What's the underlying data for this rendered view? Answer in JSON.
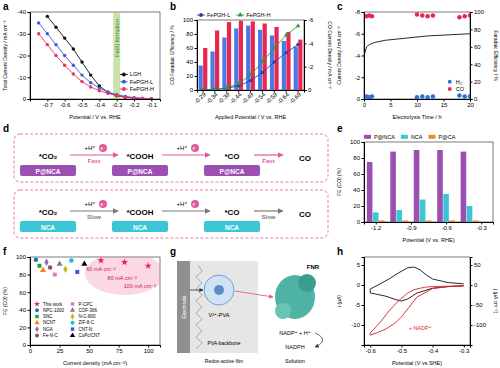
{
  "chart_data": [
    {
      "panel_label": "a",
      "type": "line",
      "x_label": "Potential / V vs. RHE",
      "y_label": "Total Current Density / mA cm⁻²",
      "xlim": [
        -0.8,
        -0.05
      ],
      "xticks": [
        -0.7,
        -0.6,
        -0.5,
        -0.4,
        -0.3,
        -0.2,
        -0.1
      ],
      "ylim": [
        0,
        -40
      ],
      "yticks": [
        0,
        -10,
        -20,
        -30,
        -40
      ],
      "x": [
        -0.75,
        -0.7,
        -0.65,
        -0.6,
        -0.55,
        -0.5,
        -0.45,
        -0.4,
        -0.35,
        -0.3,
        -0.25,
        -0.2,
        -0.15,
        -0.1
      ],
      "series": [
        {
          "name": "LGH",
          "color": "#111111",
          "marker": "circle",
          "values": [
            null,
            -38,
            -33,
            -28,
            -23,
            -17,
            -11,
            -6,
            -3,
            -1.5,
            -0.8,
            -0.4,
            -0.2,
            -0.1
          ]
        },
        {
          "name": "FePGH-L",
          "color": "#3b5bdb",
          "marker": "circle",
          "values": [
            -35,
            -30,
            -25,
            -20,
            -15.5,
            -11,
            -7.5,
            -5,
            -3.2,
            -2,
            -1.2,
            -0.6,
            -0.3,
            -0.1
          ]
        },
        {
          "name": "FePGH-H",
          "color": "#e8336d",
          "marker": "circle",
          "values": [
            -30,
            -25,
            -20,
            -15.5,
            -11.5,
            -8,
            -5.5,
            -3.8,
            -2.6,
            -1.6,
            -0.9,
            -0.5,
            -0.2,
            -0.1
          ]
        }
      ],
      "bands": [
        {
          "from": -0.32,
          "to": -0.28,
          "label": "Fe(II) formation",
          "color": "#9ccc65"
        }
      ],
      "legend": "bottom-right"
    },
    {
      "panel_label": "b",
      "type": "bar",
      "categories": [
        "-0.29",
        "-0.34",
        "-0.39",
        "-0.44",
        "-0.49",
        "-0.54",
        "-0.59",
        "-0.64",
        "-0.69"
      ],
      "x_label": "Applied Potential / V vs. RHE",
      "y_label": "CO Faradaic Efficiency / %",
      "y2_label": "CO Current Density / mA cm⁻²",
      "ylim": [
        0,
        100
      ],
      "yticks": [
        0,
        20,
        40,
        60,
        80,
        100
      ],
      "y2lim": [
        0,
        -6
      ],
      "y2ticks": [
        0,
        -2,
        -4,
        -6
      ],
      "series": [
        {
          "name": "FePGH-L",
          "type": "line",
          "axis": "y2",
          "color": "#2b3fa8",
          "marker": "circle",
          "values": [
            0,
            -0.05,
            -0.15,
            -0.35,
            -0.8,
            -1.5,
            -2.4,
            -3.2,
            -3.9
          ]
        },
        {
          "name": "FePGH-H",
          "type": "line",
          "axis": "y2",
          "color": "#2e9e3e",
          "marker": "triangle",
          "values": [
            0,
            -0.05,
            -0.2,
            -0.55,
            -1.3,
            -2.4,
            -3.6,
            -4.7,
            -5.5
          ]
        },
        {
          "name": "FePGH-L",
          "type": "bar",
          "color": "#4d79e6",
          "values": [
            35,
            55,
            75,
            88,
            92,
            86,
            78,
            70,
            62
          ]
        },
        {
          "name": "FePGH-H",
          "type": "bar",
          "color": "#e8264f",
          "values": [
            60,
            85,
            97,
            99,
            98,
            95,
            90,
            83,
            72
          ]
        }
      ],
      "legend": "top"
    },
    {
      "panel_label": "c",
      "type": "line",
      "x_label": "Electrolysis Time / h",
      "y_label": "Current Density / mA cm⁻²",
      "y2_label": "Faradaic Efficiency / %",
      "xlim": [
        0,
        20
      ],
      "xticks": [
        0,
        5,
        10,
        15,
        20
      ],
      "ylim": [
        0,
        -8
      ],
      "yticks": [
        0,
        -2,
        -4,
        -6,
        -8
      ],
      "y2lim": [
        0,
        100
      ],
      "y2ticks": [
        0,
        20,
        40,
        60,
        80,
        100
      ],
      "series": [
        {
          "name": "H₂",
          "type": "scatter",
          "axis": "y2",
          "color": "#2f6fd6",
          "marker": "circle",
          "x": [
            0.5,
            1,
            1.5,
            10,
            11,
            12,
            13,
            18,
            19,
            20
          ],
          "values": [
            3,
            2,
            3,
            2,
            3,
            2,
            3,
            4,
            3,
            3
          ]
        },
        {
          "name": "CO",
          "type": "scatter",
          "axis": "y2",
          "color": "#e8264f",
          "marker": "circle",
          "x": [
            0.5,
            1,
            1.5,
            10,
            11,
            12,
            13,
            18,
            19,
            20
          ],
          "values": [
            95,
            96,
            95,
            97,
            96,
            95,
            96,
            94,
            95,
            96
          ]
        },
        {
          "type": "line",
          "color": "#111111",
          "x": [
            0,
            0.5,
            1,
            2,
            4,
            6,
            8,
            10,
            12,
            14,
            16,
            18,
            20
          ],
          "values": [
            -4.0,
            -4.8,
            -5.0,
            -5.2,
            -5.4,
            -5.5,
            -5.6,
            -5.7,
            -5.8,
            -5.85,
            -5.9,
            -5.95,
            -6.0
          ]
        }
      ],
      "legend": "bottom-right"
    },
    {
      "panel_label": "e",
      "type": "bar",
      "x_label": "Potential (V vs. RHE)",
      "y_label": "FE (CO) (%)",
      "xlim": [
        -1.3,
        -0.2
      ],
      "xticks": [
        -1.2,
        -0.9,
        -0.6,
        -0.3
      ],
      "ylim": [
        0,
        100
      ],
      "yticks": [
        0,
        20,
        40,
        60,
        80,
        100
      ],
      "x": [
        -1.2,
        -1.0,
        -0.8,
        -0.6,
        -0.4
      ],
      "series": [
        {
          "name": "P@NCA",
          "color": "#9b4fb0",
          "values": [
            75,
            88,
            90,
            90,
            88
          ]
        },
        {
          "name": "NCA",
          "color": "#3bc6d6",
          "values": [
            12,
            15,
            28,
            35,
            20
          ]
        },
        {
          "name": "P@CA",
          "color": "#f28c28",
          "values": [
            2,
            2,
            2,
            2,
            2
          ]
        }
      ],
      "legend": "top"
    },
    {
      "panel_label": "f",
      "type": "scatter",
      "x_label": "Current density (mA cm⁻²)",
      "y_label": "FE (CO) (%)",
      "xlim": [
        0,
        110
      ],
      "xticks": [
        0,
        25,
        50,
        75,
        100
      ],
      "ylim": [
        0,
        100
      ],
      "yticks": [
        0,
        20,
        40,
        60,
        80,
        100
      ],
      "series": [
        {
          "name": "This work",
          "color": "#e8264f",
          "marker": "star",
          "x": [
            60,
            80,
            100
          ],
          "values": [
            96,
            94,
            90
          ]
        },
        {
          "name": "NPC-1000",
          "color": "#1f77b4",
          "marker": "circle",
          "x": [
            5
          ],
          "values": [
            97
          ]
        },
        {
          "name": "SNC",
          "color": "#2ca02c",
          "marker": "square",
          "x": [
            8
          ],
          "values": [
            90
          ]
        },
        {
          "name": "NCNT",
          "color": "#ff7f0e",
          "marker": "triangle",
          "x": [
            11
          ],
          "values": [
            85
          ]
        },
        {
          "name": "NGA",
          "color": "#9467bd",
          "marker": "diamond",
          "x": [
            14
          ],
          "values": [
            94
          ]
        },
        {
          "name": "Fe-N-C",
          "color": "#8c564b",
          "marker": "circle",
          "x": [
            17
          ],
          "values": [
            88
          ]
        },
        {
          "name": "P-CPC",
          "color": "#e377c2",
          "marker": "square",
          "x": [
            21
          ],
          "values": [
            80
          ]
        },
        {
          "name": "COF-366",
          "color": "#7f7f7f",
          "marker": "triangle",
          "x": [
            25
          ],
          "values": [
            92
          ]
        },
        {
          "name": "N-C-800",
          "color": "#bcbd22",
          "marker": "diamond",
          "x": [
            30
          ],
          "values": [
            86
          ]
        },
        {
          "name": "ZIF-8-C",
          "color": "#17becf",
          "marker": "circle",
          "x": [
            35
          ],
          "values": [
            96
          ]
        },
        {
          "name": "CNT-N",
          "color": "#3b5bdb",
          "marker": "square",
          "x": [
            40
          ],
          "values": [
            83
          ]
        },
        {
          "name": "CoPc/CNT",
          "color": "#000000",
          "marker": "triangle",
          "x": [
            46
          ],
          "values": [
            92
          ]
        }
      ],
      "annotations": [
        {
          "text": "60 mA cm⁻²",
          "x": 60,
          "y": 86,
          "color": "#c2185b"
        },
        {
          "text": "80 mA cm⁻²",
          "x": 78,
          "y": 76,
          "color": "#c2185b"
        },
        {
          "text": "100 mA cm⁻²",
          "x": 93,
          "y": 66,
          "color": "#c2185b"
        }
      ],
      "legend": "bottom-left"
    },
    {
      "panel_label": "h",
      "type": "line",
      "x_label": "Potential (V vs SHE)",
      "y_label": "i (µA)",
      "y2_label": "j (µA cm⁻²)",
      "xlim": [
        -0.62,
        -0.28
      ],
      "xticks": [
        -0.6,
        -0.5,
        -0.4,
        -0.3
      ],
      "ylim": [
        -15,
        7
      ],
      "yticks": [
        -10,
        -5,
        0,
        5
      ],
      "y2lim": [
        -150,
        70
      ],
      "y2ticks": [
        -100,
        -50,
        0,
        50
      ],
      "series": [
        {
          "color": "#111111",
          "x": [
            -0.3,
            -0.35,
            -0.4,
            -0.45,
            -0.48,
            -0.5,
            -0.52,
            -0.55,
            -0.58,
            -0.6,
            -0.6,
            -0.57,
            -0.54,
            -0.51,
            -0.48,
            -0.46,
            -0.44,
            -0.42,
            -0.4,
            -0.35,
            -0.3
          ],
          "values": [
            -0.2,
            -0.4,
            -0.8,
            -2.0,
            -3.5,
            -4.0,
            -3.6,
            -2.8,
            -2.3,
            -2.0,
            -1.0,
            0.2,
            1.5,
            3.0,
            4.3,
            4.5,
            3.8,
            2.5,
            1.5,
            0.6,
            0.3
          ]
        },
        {
          "color": "#d62728",
          "x": [
            -0.3,
            -0.35,
            -0.4,
            -0.45,
            -0.48,
            -0.5,
            -0.52,
            -0.55,
            -0.58,
            -0.6,
            -0.6,
            -0.57,
            -0.54,
            -0.51,
            -0.48,
            -0.46,
            -0.44,
            -0.42,
            -0.4,
            -0.35,
            -0.3
          ],
          "values": [
            -0.2,
            -0.4,
            -0.9,
            -3.0,
            -6.0,
            -8.0,
            -9.5,
            -11.0,
            -12.0,
            -12.5,
            -12.0,
            -9.5,
            -6.5,
            -4.0,
            -2.0,
            -1.2,
            -0.8,
            -0.5,
            -0.4,
            -0.3,
            -0.2
          ]
        }
      ],
      "annotations": [
        {
          "text": "+ NADP⁺",
          "x": -0.44,
          "y": -11,
          "color": "#d62728"
        }
      ]
    }
  ],
  "panel_d": {
    "panel_label": "d",
    "proton": "+H⁺",
    "electron": "e⁻",
    "rows": [
      {
        "catalyst": "P@NCA",
        "species": [
          "*CO₂",
          "*COOH",
          "*CO",
          "CO"
        ],
        "speed": [
          "Fast",
          "Fast"
        ]
      },
      {
        "catalyst": "NCA",
        "species": [
          "*CO₂",
          "*COOH",
          "*CO",
          "CO"
        ],
        "speed": [
          "Slow",
          "Slow"
        ]
      }
    ]
  },
  "panel_g": {
    "panel_label": "g",
    "electrode": "Electrode",
    "film": "Redox-active film",
    "solution": "Solution",
    "backbone": "PVA-backbone",
    "mediator": "V²⁺-PVA",
    "enzyme": "FNR",
    "substrate": "NADP⁺ + H⁺",
    "product": "NADPH"
  }
}
